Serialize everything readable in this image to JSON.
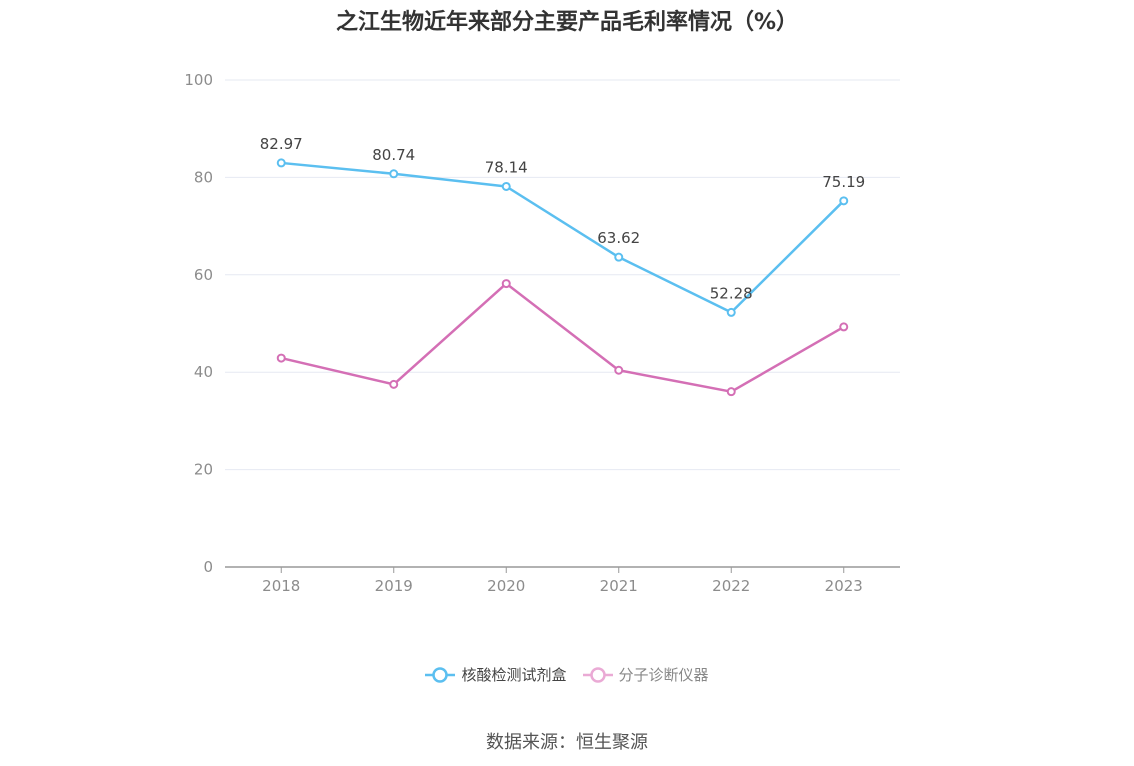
{
  "title": "之江生物近年来部分主要产品毛利率情况（%）",
  "source": "数据来源：恒生聚源",
  "colors": {
    "grid": "#e6e9f2",
    "axis": "#999999"
  },
  "chart_data": {
    "type": "line",
    "title": "之江生物近年来部分主要产品毛利率情况（%）",
    "categories": [
      "2018",
      "2019",
      "2020",
      "2021",
      "2022",
      "2023"
    ],
    "ylim": [
      0,
      100
    ],
    "yticks": [
      0,
      20,
      40,
      60,
      80,
      100
    ],
    "grid": true,
    "legend_position": "bottom",
    "series": [
      {
        "name": "核酸检测试剂盒",
        "color": "#5bbff0",
        "show_labels": true,
        "values": [
          82.97,
          80.74,
          78.14,
          63.62,
          52.28,
          75.19
        ],
        "labels": [
          "82.97",
          "80.74",
          "78.14",
          "63.62",
          "52.28",
          "75.19"
        ]
      },
      {
        "name": "分子诊断仪器",
        "color": "#d46fb5",
        "legend_color": "#eaaad5",
        "show_labels": false,
        "values": [
          42.9,
          37.5,
          58.2,
          40.4,
          36.0,
          49.3
        ]
      }
    ]
  }
}
